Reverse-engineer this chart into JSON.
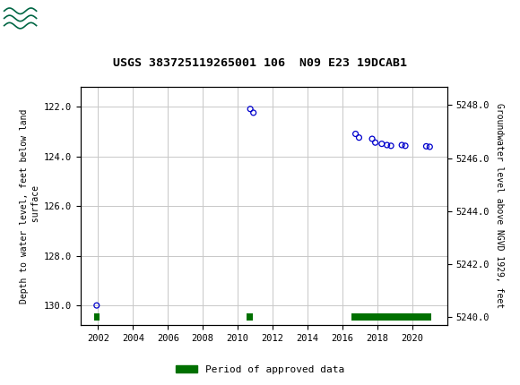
{
  "title": "USGS 383725119265001 106  N09 E23 19DCAB1",
  "left_ylabel": "Depth to water level, feet below land\n surface",
  "right_ylabel": "Groundwater level above NGVD 1929, feet",
  "xlim": [
    2001.0,
    2022.0
  ],
  "ylim_left": [
    130.8,
    121.2
  ],
  "ylim_right": [
    5239.7,
    5248.7
  ],
  "xticks": [
    2002,
    2004,
    2006,
    2008,
    2010,
    2012,
    2014,
    2016,
    2018,
    2020
  ],
  "yticks_left": [
    122.0,
    124.0,
    126.0,
    128.0,
    130.0
  ],
  "yticks_right": [
    5240.0,
    5242.0,
    5244.0,
    5246.0,
    5248.0
  ],
  "data_points_x": [
    2001.92,
    2010.72,
    2010.9,
    2016.75,
    2016.95,
    2017.7,
    2017.88,
    2018.25,
    2018.55,
    2018.78,
    2019.4,
    2019.6,
    2020.8,
    2021.0
  ],
  "data_points_y": [
    130.0,
    122.1,
    122.25,
    123.1,
    123.25,
    123.3,
    123.45,
    123.5,
    123.55,
    123.58,
    123.55,
    123.58,
    123.6,
    123.62
  ],
  "approved_periods": [
    {
      "x_start": 2001.78,
      "x_end": 2002.08
    },
    {
      "x_start": 2010.52,
      "x_end": 2010.85
    },
    {
      "x_start": 2016.5,
      "x_end": 2021.1
    }
  ],
  "point_color": "#0000cc",
  "approved_color": "#007000",
  "header_bg": "#1a6b3c",
  "grid_color": "#c8c8c8",
  "background_color": "#ffffff",
  "plot_bg": "#ffffff",
  "title_fontsize": 9.5,
  "tick_fontsize": 7.5,
  "label_fontsize": 7.0,
  "legend_fontsize": 8.0
}
